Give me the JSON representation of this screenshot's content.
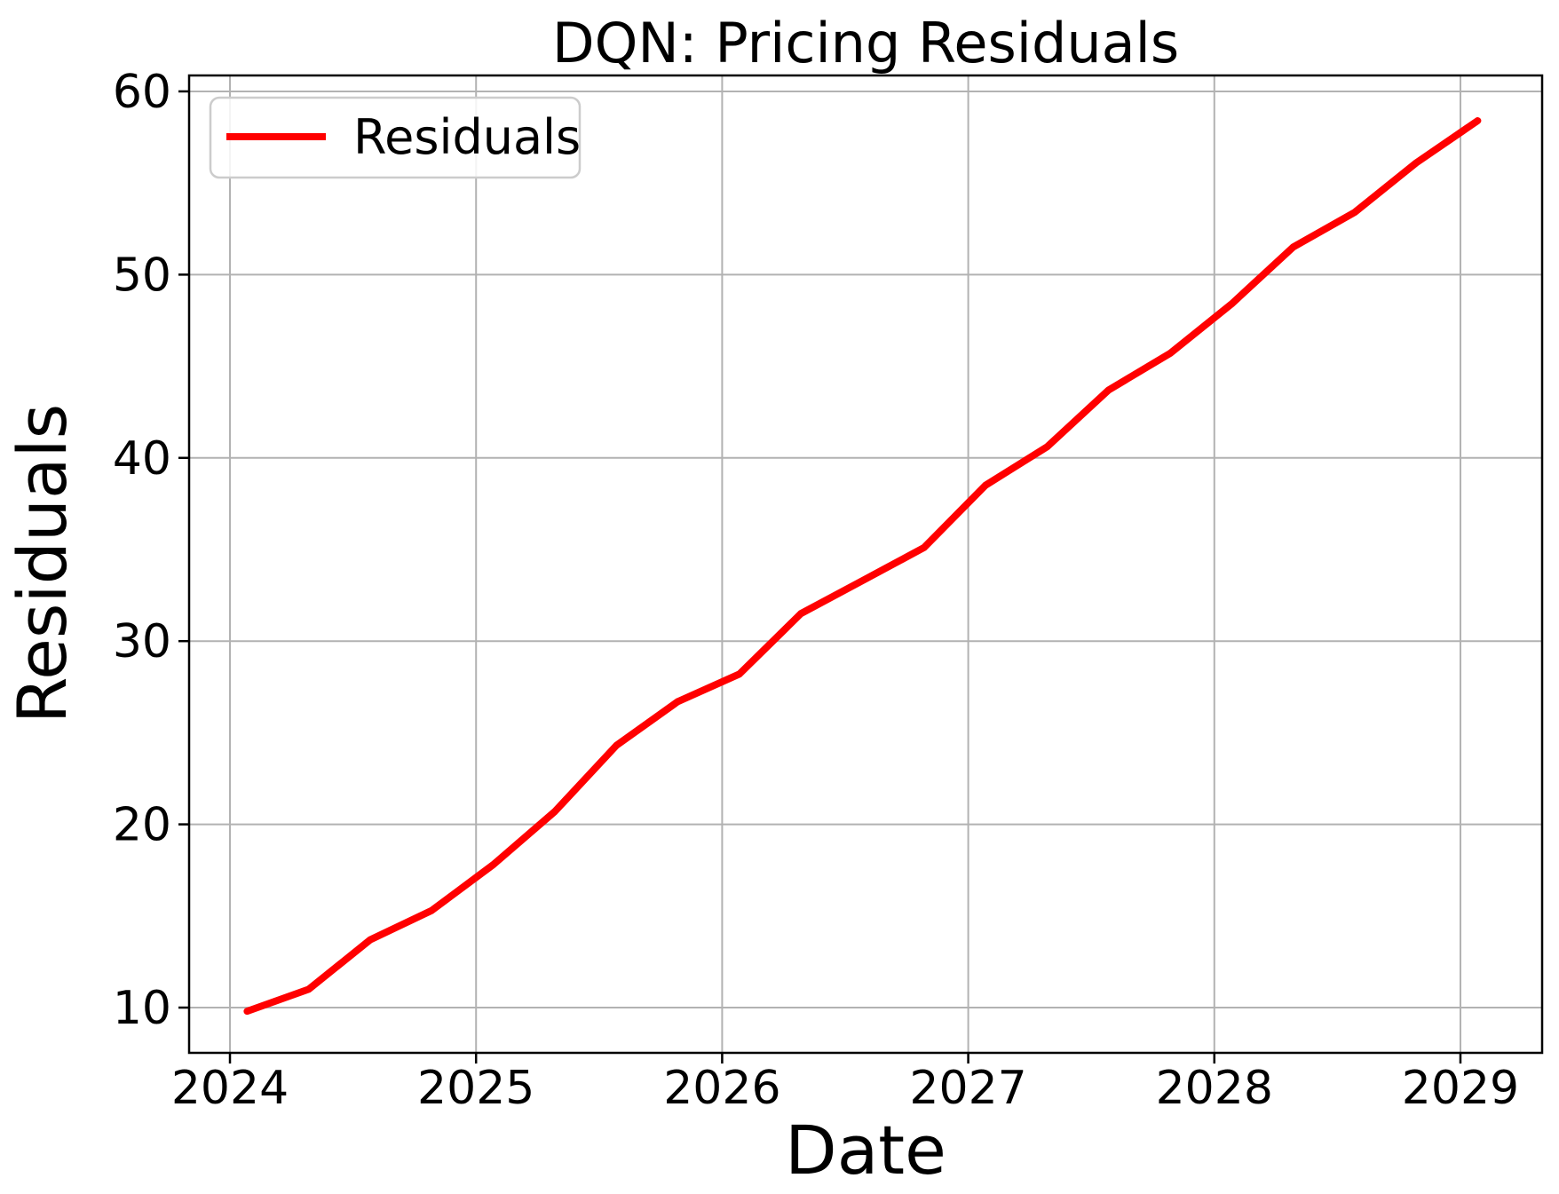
{
  "chart_data": {
    "type": "line",
    "title": "DQN: Pricing Residuals",
    "xlabel": "Date",
    "ylabel": "Residuals",
    "grid": true,
    "legend": {
      "position": "upper left",
      "entries": [
        {
          "label": "Residuals",
          "color": "#ff0000"
        }
      ]
    },
    "x_ticks": [
      2024,
      2025,
      2026,
      2027,
      2028,
      2029
    ],
    "y_ticks": [
      10,
      20,
      30,
      40,
      50,
      60
    ],
    "xlim": [
      2023.834,
      2029.332
    ],
    "ylim": [
      7.53,
      60.87
    ],
    "axis_color": "#000000",
    "grid_color": "#b2b2b2",
    "series": [
      {
        "name": "Residuals",
        "color": "#ff0000",
        "x": [
          2024.07,
          2024.32,
          2024.57,
          2024.82,
          2025.07,
          2025.32,
          2025.57,
          2025.82,
          2026.07,
          2026.32,
          2026.57,
          2026.82,
          2027.07,
          2027.32,
          2027.57,
          2027.82,
          2028.07,
          2028.32,
          2028.57,
          2028.82,
          2029.07
        ],
        "y": [
          9.8,
          11.0,
          13.7,
          15.3,
          17.8,
          20.7,
          24.3,
          26.7,
          28.2,
          31.5,
          33.3,
          35.1,
          38.5,
          40.6,
          43.7,
          45.7,
          48.4,
          51.5,
          53.4,
          56.1,
          58.4
        ]
      }
    ]
  }
}
